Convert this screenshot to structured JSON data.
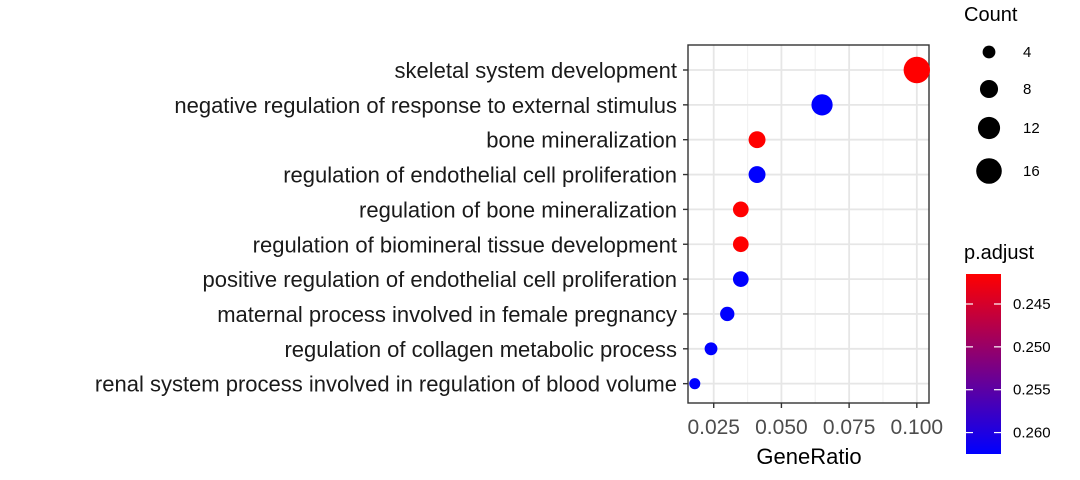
{
  "chart_data": {
    "type": "scatter",
    "xlabel": "GeneRatio",
    "ylabel": "",
    "xlim": [
      0.0155,
      0.1045
    ],
    "x_ticks": [
      0.025,
      0.05,
      0.075,
      0.1
    ],
    "x_tick_labels": [
      "0.025",
      "0.050",
      "0.075",
      "0.100"
    ],
    "grid": true,
    "legend_position": "right",
    "categories": [
      "skeletal system development",
      "negative regulation of response to external stimulus",
      "bone mineralization",
      "regulation of endothelial cell proliferation",
      "regulation of bone mineralization",
      "regulation of biomineral tissue development",
      "positive regulation of endothelial cell proliferation",
      "maternal process involved in female pregnancy",
      "regulation of collagen metabolic process",
      "renal system process involved in regulation of blood volume"
    ],
    "gene_ratio": [
      0.1,
      0.065,
      0.041,
      0.041,
      0.035,
      0.035,
      0.035,
      0.03,
      0.024,
      0.018
    ],
    "count": [
      17,
      11,
      7,
      7,
      6,
      6,
      6,
      5,
      4,
      3
    ],
    "p_adjust": [
      0.2415,
      0.2625,
      0.2415,
      0.2625,
      0.2415,
      0.2415,
      0.2625,
      0.2625,
      0.2625,
      0.2625
    ],
    "size_legend": {
      "title": "Count",
      "values": [
        4,
        8,
        12,
        16
      ],
      "labels": [
        "4",
        "8",
        "12",
        "16"
      ]
    },
    "color_legend": {
      "title": "p.adjust",
      "min": 0.2415,
      "max": 0.2625,
      "low_color": "#ff0000",
      "high_color": "#0000ff",
      "ticks": [
        0.245,
        0.25,
        0.255,
        0.26
      ],
      "tick_labels": [
        "0.245",
        "0.250",
        "0.255",
        "0.260"
      ]
    }
  }
}
